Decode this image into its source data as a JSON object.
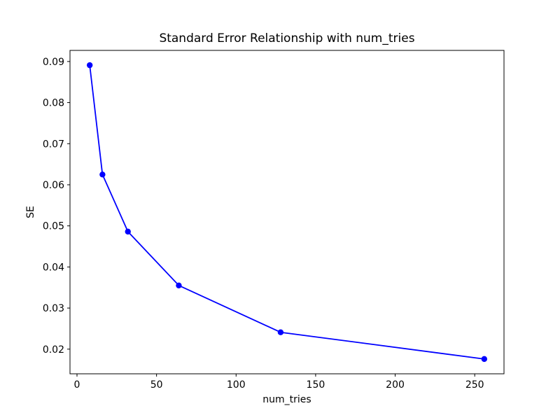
{
  "chart_data": {
    "type": "line",
    "title": "Standard Error Relationship with num_tries",
    "xlabel": "num_tries",
    "ylabel": "SE",
    "series": [
      {
        "name": "SE",
        "x": [
          8,
          16,
          32,
          64,
          128,
          256
        ],
        "y": [
          0.0891,
          0.0625,
          0.0486,
          0.0355,
          0.0241,
          0.0176
        ]
      }
    ],
    "xlim": [
      -4.4,
      268.4
    ],
    "ylim": [
      0.014,
      0.0927
    ],
    "xticks": [
      0,
      50,
      100,
      150,
      200,
      250
    ],
    "xtick_labels": [
      "0",
      "50",
      "100",
      "150",
      "200",
      "250"
    ],
    "yticks": [
      0.02,
      0.03,
      0.04,
      0.05,
      0.06,
      0.07,
      0.08,
      0.09
    ],
    "ytick_labels": [
      "0.02",
      "0.03",
      "0.04",
      "0.05",
      "0.06",
      "0.07",
      "0.08",
      "0.09"
    ],
    "grid": false,
    "legend": null,
    "marker": "circle-icon",
    "colors": {
      "line": "#0000ff",
      "marker": "#0000ff",
      "text": "#000000",
      "spine": "#000000",
      "background": "#ffffff"
    }
  }
}
